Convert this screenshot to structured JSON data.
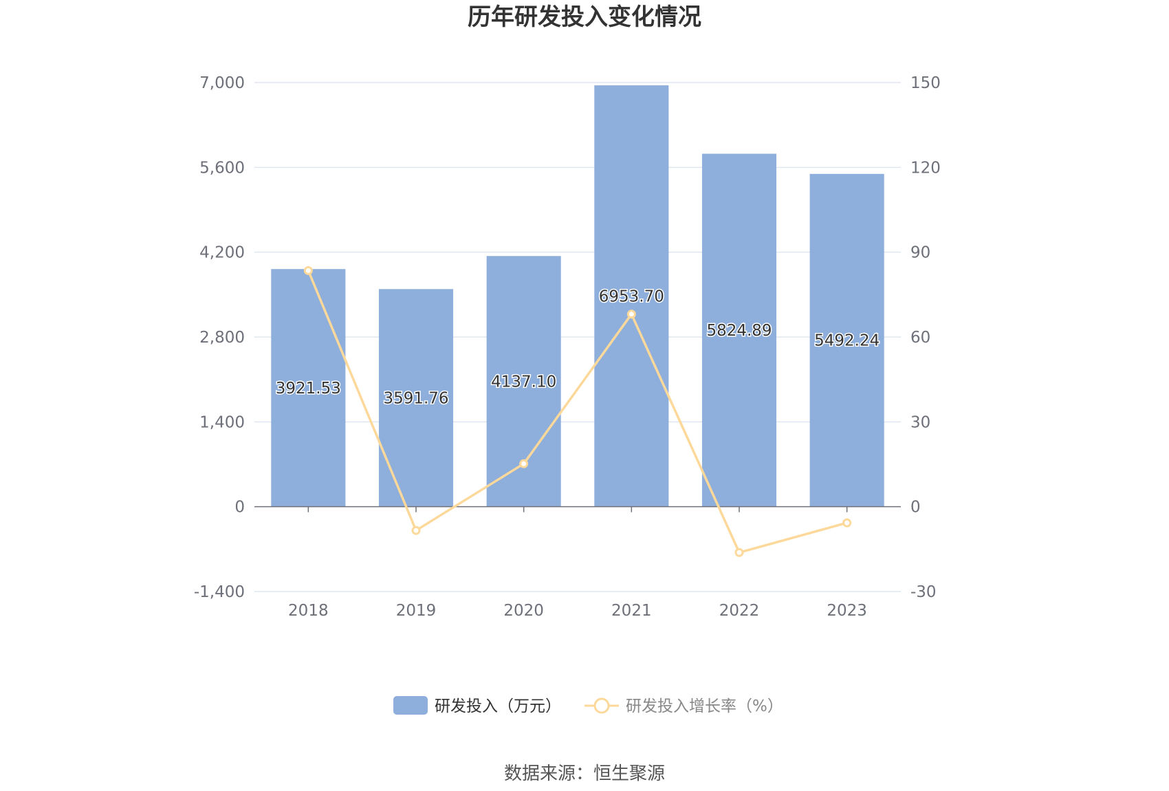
{
  "chart_data": {
    "type": "bar",
    "title": "历年研发投入变化情况",
    "categories": [
      "2018",
      "2019",
      "2020",
      "2021",
      "2022",
      "2023"
    ],
    "series": [
      {
        "name": "研发投入（万元）",
        "type": "bar",
        "axis": "left",
        "color": "#8eaedb",
        "values": [
          3921.53,
          3591.76,
          4137.1,
          6953.7,
          5824.89,
          5492.24
        ],
        "labels": [
          "3921.53",
          "3591.76",
          "4137.10",
          "6953.70",
          "5824.89",
          "5492.24"
        ]
      },
      {
        "name": "研发投入增长率（%）",
        "type": "line",
        "axis": "right",
        "color": "#fcd99a",
        "values": [
          83.5,
          -8.4,
          15.2,
          68.1,
          -16.2,
          -5.7
        ]
      }
    ],
    "y_left": {
      "min": -1400,
      "max": 7000,
      "ticks": [
        -1400,
        0,
        1400,
        2800,
        4200,
        5600,
        7000
      ],
      "tick_labels": [
        "-1,400",
        "0",
        "1,400",
        "2,800",
        "4,200",
        "5,600",
        "7,000"
      ]
    },
    "y_right": {
      "min": -30,
      "max": 150,
      "ticks": [
        -30,
        0,
        30,
        60,
        90,
        120,
        150
      ],
      "tick_labels": [
        "-30",
        "0",
        "30",
        "60",
        "90",
        "120",
        "150"
      ]
    },
    "grid": true,
    "legend_position": "bottom",
    "source": "数据来源：恒生聚源"
  }
}
